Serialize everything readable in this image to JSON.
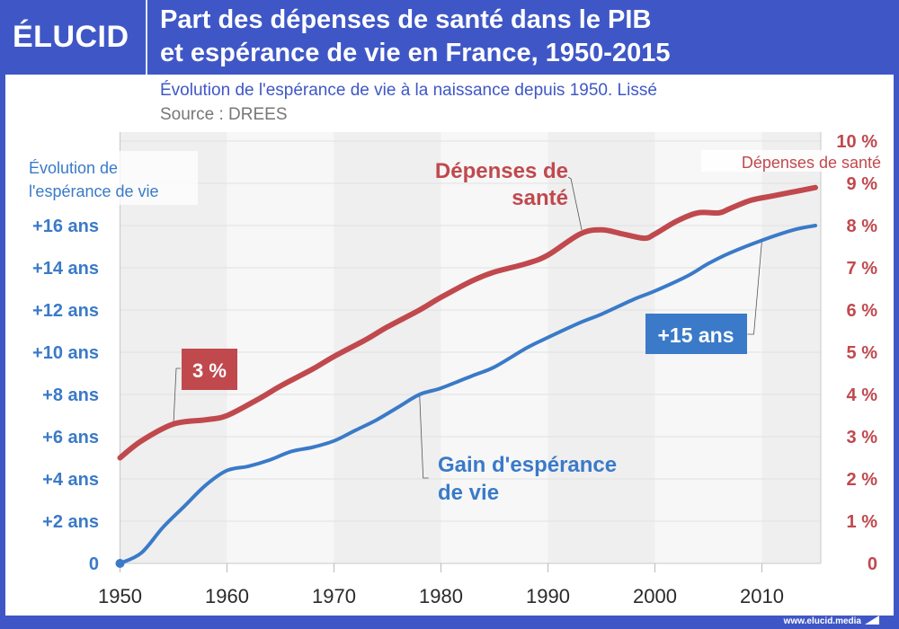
{
  "header": {
    "logo": "ÉLUCID",
    "title_line1": "Part des dépenses de santé dans le PIB",
    "title_line2": "et espérance de vie en France, 1950-2015"
  },
  "subtitle": "Évolution de l'espérance de vie à la naissance depuis 1950. Lissé",
  "source": "Source : DREES",
  "footer": {
    "url": "www.elucid.media"
  },
  "colors": {
    "brand": "#3f57c6",
    "red": "#c0494e",
    "blue": "#3a7ac8"
  },
  "chart_data": {
    "type": "line",
    "title": "Part des dépenses de santé dans le PIB et espérance de vie en France, 1950-2015",
    "subtitle": "Évolution de l'espérance de vie à la naissance depuis 1950. Lissé",
    "xlabel": "",
    "x_range": [
      1950,
      2015
    ],
    "x_ticks": [
      "1950",
      "1960",
      "1970",
      "1980",
      "1990",
      "2000",
      "2010"
    ],
    "left_axis": {
      "label_line1": "Évolution de",
      "label_line2": "l'espérance de vie",
      "range": [
        0,
        20
      ],
      "ticks": [
        "0",
        "+2 ans",
        "+4 ans",
        "+6 ans",
        "+8 ans",
        "+10 ans",
        "+12 ans",
        "+14 ans",
        "+16 ans"
      ]
    },
    "right_axis": {
      "label": "Dépenses de santé",
      "range": [
        0,
        10
      ],
      "ticks": [
        "0",
        "1 %",
        "2 %",
        "3 %",
        "4 %",
        "5 %",
        "6 %",
        "7 %",
        "8 %",
        "9 %",
        "10 %"
      ]
    },
    "grid": true,
    "series": [
      {
        "name": "Dépenses de santé",
        "axis": "right",
        "unit": "% du PIB",
        "x": [
          1950,
          1952,
          1955,
          1958,
          1960,
          1963,
          1965,
          1968,
          1970,
          1973,
          1975,
          1978,
          1980,
          1983,
          1985,
          1988,
          1990,
          1993,
          1995,
          1997,
          1999,
          2000,
          2002,
          2004,
          2006,
          2007,
          2009,
          2011,
          2013,
          2015
        ],
        "values": [
          2.5,
          2.9,
          3.3,
          3.4,
          3.5,
          3.9,
          4.2,
          4.6,
          4.9,
          5.3,
          5.6,
          6.0,
          6.3,
          6.7,
          6.9,
          7.1,
          7.3,
          7.8,
          7.9,
          7.8,
          7.7,
          7.8,
          8.1,
          8.3,
          8.3,
          8.4,
          8.6,
          8.7,
          8.8,
          8.9
        ]
      },
      {
        "name": "Gain d'espérance de vie",
        "axis": "left",
        "unit": "ans",
        "x": [
          1950,
          1952,
          1954,
          1956,
          1958,
          1960,
          1962,
          1964,
          1966,
          1968,
          1970,
          1972,
          1974,
          1976,
          1978,
          1980,
          1983,
          1985,
          1988,
          1990,
          1993,
          1995,
          1998,
          2000,
          2003,
          2005,
          2007,
          2010,
          2013,
          2015
        ],
        "values": [
          0,
          0.5,
          1.7,
          2.7,
          3.7,
          4.4,
          4.6,
          4.9,
          5.3,
          5.5,
          5.8,
          6.3,
          6.8,
          7.4,
          8.0,
          8.3,
          8.9,
          9.3,
          10.2,
          10.7,
          11.4,
          11.8,
          12.5,
          12.9,
          13.6,
          14.2,
          14.7,
          15.3,
          15.8,
          16.0
        ]
      }
    ],
    "annotations": [
      {
        "text": "3 %",
        "series": "Dépenses de santé",
        "x": 1955
      },
      {
        "text_line1": "Dépenses de",
        "text_line2": "santé",
        "series": "Dépenses de santé",
        "x": 1994
      },
      {
        "text": "+15 ans",
        "series": "Gain d'espérance de vie",
        "x": 2010
      },
      {
        "text_line1": "Gain d'espérance",
        "text_line2": "de vie",
        "series": "Gain d'espérance de vie",
        "x": 1978
      }
    ]
  }
}
